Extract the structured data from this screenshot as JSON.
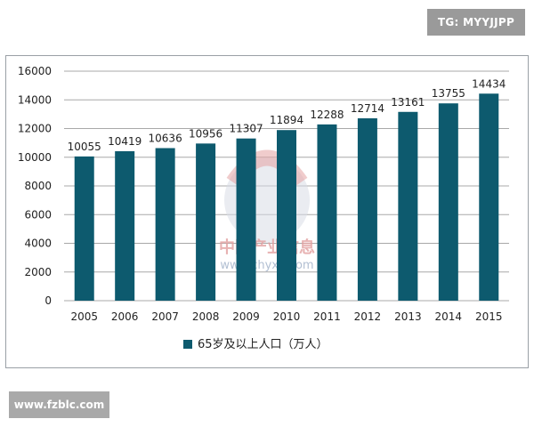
{
  "badges": {
    "top_right": "TG: MYYJJPP",
    "bottom_left": "www.fzblc.com"
  },
  "watermark": {
    "text_cn": "中国产业信息",
    "url": "www.chyxx.com"
  },
  "colors": {
    "bar": "#0d5a6e",
    "grid": "#a8a8a8",
    "axis_text": "#222222"
  },
  "chart_data": {
    "type": "bar",
    "categories": [
      "2005",
      "2006",
      "2007",
      "2008",
      "2009",
      "2010",
      "2011",
      "2012",
      "2013",
      "2014",
      "2015"
    ],
    "series": [
      {
        "name": "65岁及以上人口（万人）",
        "values": [
          10055,
          10419,
          10636,
          10956,
          11307,
          11894,
          12288,
          12714,
          13161,
          13755,
          14434
        ]
      }
    ],
    "yticks": [
      0,
      2000,
      4000,
      6000,
      8000,
      10000,
      12000,
      14000,
      16000
    ],
    "ylim": [
      0,
      16000
    ],
    "grid": true,
    "legend": "bottom",
    "title": "",
    "xlabel": "",
    "ylabel": ""
  }
}
